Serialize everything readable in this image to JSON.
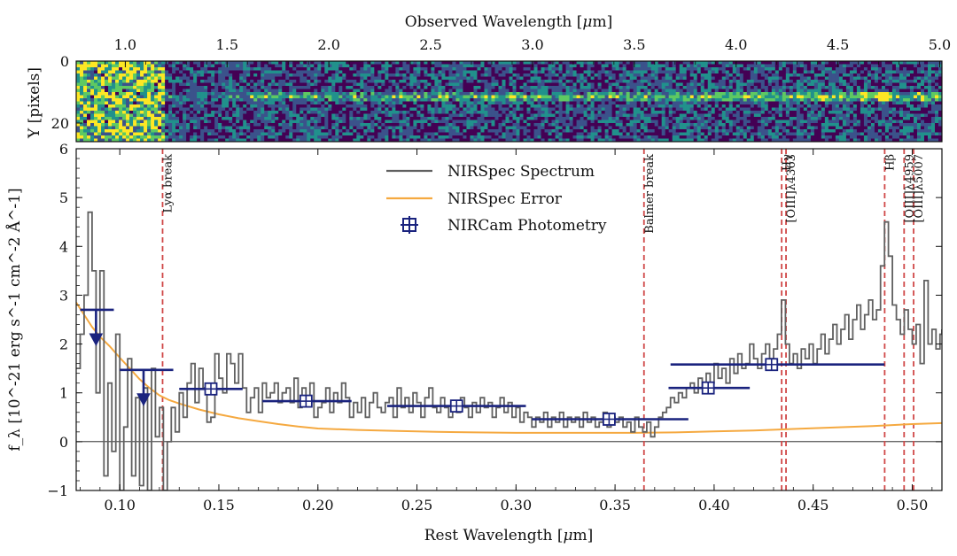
{
  "chart_data": [
    {
      "type": "heatmap",
      "panel": "2D spectrum",
      "xlabel": "Observed Wavelength [μm]",
      "xlabel_parts": [
        "Observed Wavelength [",
        "μ",
        "m]"
      ],
      "ylabel": "Y [pixels]",
      "x_ticks": [
        "1.0",
        "1.5",
        "2.0",
        "2.5",
        "3.0",
        "3.5",
        "4.0",
        "4.5",
        "5.0"
      ],
      "x_tick_values": [
        1.0,
        1.5,
        2.0,
        2.5,
        3.0,
        3.5,
        4.0,
        4.5,
        5.0
      ],
      "y_ticks": [
        "0",
        "20"
      ],
      "y_tick_values": [
        0,
        20
      ],
      "ylim": [
        26,
        0
      ],
      "colormap": [
        "#440154",
        "#3b528b",
        "#21918c",
        "#5ec962",
        "#fde725"
      ],
      "trace_row": 11,
      "note_redshift_factor": 9.73
    },
    {
      "type": "line",
      "panel": "1D spectrum",
      "xlabel": "Rest Wavelength [μm]",
      "xlabel_parts": [
        "Rest Wavelength [",
        "μ",
        "m]"
      ],
      "ylabel": "f_λ [10^-21 erg s^-1 cm^-2 Å^-1]",
      "xlim": [
        0.078,
        0.515
      ],
      "ylim": [
        -1,
        6
      ],
      "x_ticks": [
        "0.10",
        "0.15",
        "0.20",
        "0.25",
        "0.30",
        "0.35",
        "0.40",
        "0.45",
        "0.50"
      ],
      "x_tick_values": [
        0.1,
        0.15,
        0.2,
        0.25,
        0.3,
        0.35,
        0.4,
        0.45,
        0.5
      ],
      "y_ticks": [
        "−1",
        "0",
        "1",
        "2",
        "3",
        "4",
        "5",
        "6"
      ],
      "y_tick_values": [
        -1,
        0,
        1,
        2,
        3,
        4,
        5,
        6
      ],
      "legend": {
        "position": "upper-center",
        "entries": [
          {
            "label": "NIRSpec Spectrum",
            "color": "#606060",
            "kind": "line"
          },
          {
            "label": "NIRSpec Error",
            "color": "#f5a940",
            "kind": "line"
          },
          {
            "label": "NIRCam Photometry",
            "color": "#1a237e",
            "kind": "marker"
          }
        ]
      },
      "line_labels": [
        {
          "x": 0.1216,
          "text": "Lyα break"
        },
        {
          "x": 0.3646,
          "text": "Balmer break"
        },
        {
          "x": 0.4341,
          "text": "Hγ"
        },
        {
          "x": 0.4363,
          "text": "[OIII]λ4363"
        },
        {
          "x": 0.4861,
          "text": "Hβ"
        },
        {
          "x": 0.4959,
          "text": "[OIII]λ4959"
        },
        {
          "x": 0.5007,
          "text": "[OIII]λ5007"
        }
      ],
      "spectrum": [
        [
          0.078,
          1.5
        ],
        [
          0.08,
          2.2
        ],
        [
          0.082,
          3.0
        ],
        [
          0.084,
          4.7
        ],
        [
          0.086,
          3.5
        ],
        [
          0.088,
          1.0
        ],
        [
          0.09,
          3.5
        ],
        [
          0.092,
          -0.7
        ],
        [
          0.094,
          1.2
        ],
        [
          0.096,
          -0.2
        ],
        [
          0.098,
          2.2
        ],
        [
          0.1,
          -1.0
        ],
        [
          0.102,
          0.3
        ],
        [
          0.104,
          1.7
        ],
        [
          0.106,
          -0.7
        ],
        [
          0.108,
          0.9
        ],
        [
          0.11,
          -0.9
        ],
        [
          0.112,
          1.1
        ],
        [
          0.114,
          -1.0
        ],
        [
          0.116,
          1.5
        ],
        [
          0.118,
          0.1
        ],
        [
          0.12,
          0.7
        ],
        [
          0.122,
          -1.0
        ],
        [
          0.124,
          0.0
        ],
        [
          0.126,
          0.7
        ],
        [
          0.128,
          0.2
        ],
        [
          0.13,
          1.0
        ],
        [
          0.132,
          0.5
        ],
        [
          0.134,
          1.2
        ],
        [
          0.136,
          1.6
        ],
        [
          0.138,
          0.8
        ],
        [
          0.14,
          1.5
        ],
        [
          0.142,
          1.1
        ],
        [
          0.144,
          0.4
        ],
        [
          0.146,
          0.5
        ],
        [
          0.148,
          1.8
        ],
        [
          0.15,
          1.3
        ],
        [
          0.152,
          1.0
        ],
        [
          0.154,
          1.8
        ],
        [
          0.156,
          1.6
        ],
        [
          0.158,
          1.2
        ],
        [
          0.16,
          1.8
        ],
        [
          0.162,
          1.1
        ],
        [
          0.164,
          0.6
        ],
        [
          0.166,
          0.9
        ],
        [
          0.168,
          1.1
        ],
        [
          0.17,
          0.6
        ],
        [
          0.172,
          1.2
        ],
        [
          0.174,
          0.9
        ],
        [
          0.176,
          1.0
        ],
        [
          0.178,
          1.2
        ],
        [
          0.18,
          0.8
        ],
        [
          0.182,
          1.0
        ],
        [
          0.184,
          1.1
        ],
        [
          0.186,
          0.8
        ],
        [
          0.188,
          1.3
        ],
        [
          0.19,
          0.7
        ],
        [
          0.192,
          1.1
        ],
        [
          0.194,
          0.9
        ],
        [
          0.196,
          1.2
        ],
        [
          0.198,
          0.5
        ],
        [
          0.2,
          0.7
        ],
        [
          0.202,
          0.8
        ],
        [
          0.204,
          1.1
        ],
        [
          0.206,
          0.6
        ],
        [
          0.208,
          1.0
        ],
        [
          0.21,
          0.8
        ],
        [
          0.212,
          1.2
        ],
        [
          0.214,
          0.9
        ],
        [
          0.216,
          0.5
        ],
        [
          0.218,
          0.8
        ],
        [
          0.22,
          0.6
        ],
        [
          0.222,
          0.9
        ],
        [
          0.224,
          0.5
        ],
        [
          0.226,
          0.8
        ],
        [
          0.228,
          1.0
        ],
        [
          0.23,
          0.7
        ],
        [
          0.232,
          0.6
        ],
        [
          0.234,
          0.8
        ],
        [
          0.236,
          0.9
        ],
        [
          0.238,
          0.5
        ],
        [
          0.24,
          1.1
        ],
        [
          0.242,
          0.7
        ],
        [
          0.244,
          0.9
        ],
        [
          0.246,
          0.6
        ],
        [
          0.248,
          1.0
        ],
        [
          0.25,
          0.8
        ],
        [
          0.252,
          0.5
        ],
        [
          0.254,
          0.9
        ],
        [
          0.256,
          1.1
        ],
        [
          0.258,
          0.7
        ],
        [
          0.26,
          0.6
        ],
        [
          0.262,
          0.9
        ],
        [
          0.264,
          0.7
        ],
        [
          0.266,
          0.5
        ],
        [
          0.268,
          0.8
        ],
        [
          0.27,
          0.6
        ],
        [
          0.272,
          0.9
        ],
        [
          0.274,
          0.7
        ],
        [
          0.276,
          0.5
        ],
        [
          0.278,
          0.8
        ],
        [
          0.28,
          0.6
        ],
        [
          0.282,
          0.9
        ],
        [
          0.284,
          0.7
        ],
        [
          0.286,
          0.8
        ],
        [
          0.288,
          0.5
        ],
        [
          0.29,
          0.7
        ],
        [
          0.292,
          0.9
        ],
        [
          0.294,
          0.6
        ],
        [
          0.296,
          0.8
        ],
        [
          0.298,
          0.5
        ],
        [
          0.3,
          0.7
        ],
        [
          0.302,
          0.4
        ],
        [
          0.304,
          0.6
        ],
        [
          0.306,
          0.5
        ],
        [
          0.308,
          0.3
        ],
        [
          0.31,
          0.5
        ],
        [
          0.312,
          0.4
        ],
        [
          0.314,
          0.6
        ],
        [
          0.316,
          0.3
        ],
        [
          0.318,
          0.5
        ],
        [
          0.32,
          0.4
        ],
        [
          0.322,
          0.6
        ],
        [
          0.324,
          0.3
        ],
        [
          0.326,
          0.5
        ],
        [
          0.328,
          0.4
        ],
        [
          0.33,
          0.5
        ],
        [
          0.332,
          0.3
        ],
        [
          0.334,
          0.6
        ],
        [
          0.336,
          0.4
        ],
        [
          0.338,
          0.5
        ],
        [
          0.34,
          0.3
        ],
        [
          0.342,
          0.4
        ],
        [
          0.344,
          0.6
        ],
        [
          0.346,
          0.3
        ],
        [
          0.348,
          0.5
        ],
        [
          0.35,
          0.4
        ],
        [
          0.352,
          0.5
        ],
        [
          0.354,
          0.3
        ],
        [
          0.356,
          0.4
        ],
        [
          0.358,
          0.2
        ],
        [
          0.36,
          0.5
        ],
        [
          0.362,
          0.3
        ],
        [
          0.364,
          0.2
        ],
        [
          0.366,
          0.4
        ],
        [
          0.368,
          0.1
        ],
        [
          0.37,
          0.3
        ],
        [
          0.372,
          0.5
        ],
        [
          0.374,
          0.6
        ],
        [
          0.376,
          0.7
        ],
        [
          0.378,
          0.9
        ],
        [
          0.38,
          0.8
        ],
        [
          0.382,
          1.0
        ],
        [
          0.384,
          0.9
        ],
        [
          0.386,
          1.1
        ],
        [
          0.388,
          1.2
        ],
        [
          0.39,
          1.0
        ],
        [
          0.392,
          1.3
        ],
        [
          0.394,
          1.1
        ],
        [
          0.396,
          1.4
        ],
        [
          0.398,
          1.2
        ],
        [
          0.4,
          1.6
        ],
        [
          0.402,
          1.3
        ],
        [
          0.404,
          1.5
        ],
        [
          0.406,
          1.2
        ],
        [
          0.408,
          1.7
        ],
        [
          0.41,
          1.4
        ],
        [
          0.412,
          1.8
        ],
        [
          0.414,
          1.5
        ],
        [
          0.416,
          1.6
        ],
        [
          0.418,
          2.0
        ],
        [
          0.42,
          1.7
        ],
        [
          0.422,
          1.5
        ],
        [
          0.424,
          1.8
        ],
        [
          0.426,
          2.0
        ],
        [
          0.428,
          1.7
        ],
        [
          0.43,
          1.9
        ],
        [
          0.432,
          2.2
        ],
        [
          0.434,
          2.9
        ],
        [
          0.436,
          2.0
        ],
        [
          0.438,
          1.6
        ],
        [
          0.44,
          1.8
        ],
        [
          0.442,
          1.5
        ],
        [
          0.444,
          1.9
        ],
        [
          0.446,
          1.7
        ],
        [
          0.448,
          2.0
        ],
        [
          0.45,
          1.6
        ],
        [
          0.452,
          1.9
        ],
        [
          0.454,
          2.2
        ],
        [
          0.456,
          1.8
        ],
        [
          0.458,
          2.1
        ],
        [
          0.46,
          2.4
        ],
        [
          0.462,
          2.0
        ],
        [
          0.464,
          2.3
        ],
        [
          0.466,
          2.6
        ],
        [
          0.468,
          2.1
        ],
        [
          0.47,
          2.5
        ],
        [
          0.472,
          2.8
        ],
        [
          0.474,
          2.3
        ],
        [
          0.476,
          2.6
        ],
        [
          0.478,
          2.9
        ],
        [
          0.48,
          2.5
        ],
        [
          0.482,
          2.7
        ],
        [
          0.484,
          3.6
        ],
        [
          0.486,
          4.5
        ],
        [
          0.488,
          3.8
        ],
        [
          0.49,
          2.8
        ],
        [
          0.492,
          2.5
        ],
        [
          0.494,
          2.2
        ],
        [
          0.496,
          2.7
        ],
        [
          0.498,
          2.3
        ],
        [
          0.5,
          2.0
        ],
        [
          0.502,
          2.4
        ],
        [
          0.504,
          1.6
        ],
        [
          0.506,
          3.3
        ],
        [
          0.508,
          2.0
        ],
        [
          0.51,
          2.3
        ],
        [
          0.512,
          1.9
        ],
        [
          0.514,
          2.2
        ],
        [
          0.515,
          2.3
        ]
      ],
      "error": [
        [
          0.078,
          2.85
        ],
        [
          0.082,
          2.6
        ],
        [
          0.086,
          2.35
        ],
        [
          0.09,
          2.15
        ],
        [
          0.095,
          1.95
        ],
        [
          0.1,
          1.72
        ],
        [
          0.105,
          1.5
        ],
        [
          0.11,
          1.28
        ],
        [
          0.115,
          1.1
        ],
        [
          0.12,
          0.95
        ],
        [
          0.125,
          0.85
        ],
        [
          0.13,
          0.78
        ],
        [
          0.14,
          0.66
        ],
        [
          0.15,
          0.56
        ],
        [
          0.16,
          0.48
        ],
        [
          0.17,
          0.42
        ],
        [
          0.18,
          0.36
        ],
        [
          0.19,
          0.31
        ],
        [
          0.2,
          0.27
        ],
        [
          0.22,
          0.24
        ],
        [
          0.24,
          0.22
        ],
        [
          0.26,
          0.2
        ],
        [
          0.28,
          0.19
        ],
        [
          0.3,
          0.18
        ],
        [
          0.32,
          0.18
        ],
        [
          0.34,
          0.18
        ],
        [
          0.36,
          0.18
        ],
        [
          0.38,
          0.19
        ],
        [
          0.4,
          0.21
        ],
        [
          0.42,
          0.23
        ],
        [
          0.44,
          0.26
        ],
        [
          0.46,
          0.29
        ],
        [
          0.48,
          0.32
        ],
        [
          0.5,
          0.36
        ],
        [
          0.515,
          0.38
        ]
      ],
      "photometry": [
        {
          "x": 0.146,
          "y": 1.08,
          "xerr": [
            0.13,
            0.162
          ]
        },
        {
          "x": 0.194,
          "y": 0.83,
          "xerr": [
            0.172,
            0.217
          ]
        },
        {
          "x": 0.27,
          "y": 0.73,
          "xerr": [
            0.235,
            0.305
          ]
        },
        {
          "x": 0.347,
          "y": 0.46,
          "xerr": [
            0.308,
            0.387
          ]
        },
        {
          "x": 0.397,
          "y": 1.1,
          "xerr": [
            0.377,
            0.418
          ]
        },
        {
          "x": 0.429,
          "y": 1.58,
          "xerr": [
            0.378,
            0.486
          ]
        }
      ],
      "upper_limits": [
        {
          "x": 0.088,
          "y": 2.7,
          "xerr": [
            0.08,
            0.097
          ]
        },
        {
          "x": 0.112,
          "y": 1.47,
          "xerr": [
            0.1,
            0.127
          ]
        }
      ]
    }
  ]
}
